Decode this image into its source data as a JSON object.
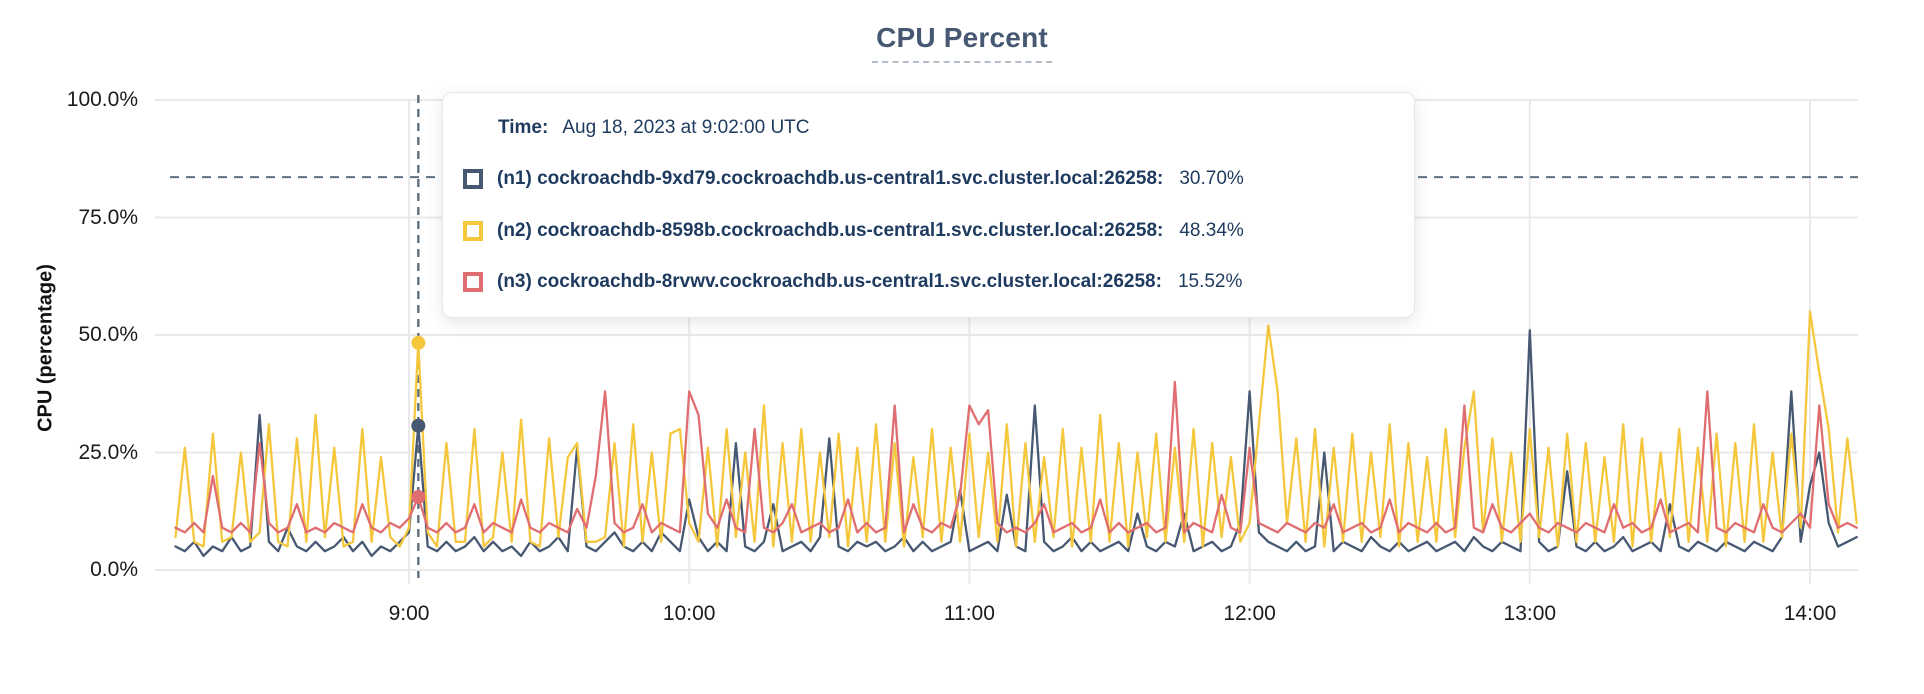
{
  "page": {
    "background": "#ffffff"
  },
  "colors": {
    "title": "#475872",
    "series_n1": "#475872",
    "series_n2": "#f4c73c",
    "series_n3": "#e06e71",
    "gridline": "#e9e9e9",
    "dashed_guide": "#5e7082",
    "tick_text": "#1b1b1b",
    "tooltip_text": "#1e3a5f"
  },
  "chart_data": {
    "type": "line",
    "title": "CPU Percent",
    "ylabel": "CPU (percentage)",
    "ylim": [
      0,
      100
    ],
    "grid": true,
    "x_axis_is_time": true,
    "x_ticks": [
      {
        "minute": 540,
        "label": "9:00"
      },
      {
        "minute": 600,
        "label": "10:00"
      },
      {
        "minute": 660,
        "label": "11:00"
      },
      {
        "minute": 720,
        "label": "12:00"
      },
      {
        "minute": 780,
        "label": "13:00"
      },
      {
        "minute": 840,
        "label": "14:00"
      }
    ],
    "y_ticks": [
      {
        "value": 100,
        "label": "100.0%"
      },
      {
        "value": 75,
        "label": "75.0%"
      },
      {
        "value": 50,
        "label": "50.0%"
      },
      {
        "value": 25,
        "label": "25.0%"
      },
      {
        "value": 0,
        "label": "0.0%"
      }
    ],
    "threshold_percent": 83.6,
    "hover": {
      "minute": 542,
      "time_label": "Aug 18, 2023 at 9:02:00 UTC"
    },
    "series": [
      {
        "id": "n1",
        "name": "(n1) cockroachdb-9xd79.cockroachdb.us-central1.svc.cluster.local:26258",
        "color": "#475872",
        "value_at_hover_percent": 30.7,
        "t_start_minute": 490,
        "t_step_minutes": 2,
        "values": [
          5,
          4,
          6,
          3,
          5,
          4,
          7,
          4,
          5,
          33,
          6,
          4,
          9,
          5,
          4,
          6,
          4,
          5,
          7,
          4,
          6,
          3,
          5,
          4,
          6,
          8,
          30.7,
          5,
          4,
          6,
          4,
          5,
          7,
          4,
          6,
          4,
          5,
          3,
          6,
          4,
          5,
          7,
          4,
          26,
          5,
          4,
          6,
          8,
          5,
          4,
          6,
          4,
          8,
          6,
          4,
          15,
          7,
          4,
          6,
          4,
          27,
          5,
          4,
          6,
          14,
          4,
          5,
          6,
          4,
          7,
          28,
          5,
          4,
          6,
          5,
          6,
          4,
          5,
          7,
          4,
          6,
          4,
          5,
          6,
          17,
          4,
          5,
          6,
          4,
          16,
          5,
          4,
          35,
          6,
          4,
          5,
          7,
          4,
          6,
          4,
          5,
          6,
          4,
          12,
          5,
          4,
          6,
          5,
          12,
          4,
          5,
          6,
          4,
          5,
          10,
          38,
          8,
          6,
          5,
          4,
          6,
          4,
          5,
          25,
          4,
          6,
          5,
          4,
          7,
          5,
          4,
          6,
          4,
          5,
          6,
          4,
          5,
          6,
          4,
          7,
          5,
          4,
          6,
          5,
          4,
          51,
          6,
          4,
          5,
          21,
          5,
          4,
          6,
          4,
          5,
          7,
          4,
          5,
          6,
          4,
          14,
          5,
          4,
          6,
          5,
          4,
          6,
          5,
          4,
          6,
          5,
          4,
          7,
          38,
          6,
          18,
          25,
          10,
          5,
          6,
          7
        ]
      },
      {
        "id": "n2",
        "name": "(n2) cockroachdb-8598b.cockroachdb.us-central1.svc.cluster.local:26258",
        "color": "#f4c73c",
        "value_at_hover_percent": 48.34,
        "t_start_minute": 490,
        "t_step_minutes": 2,
        "values": [
          7,
          26,
          6,
          5,
          29,
          6,
          7,
          25,
          6,
          8,
          31,
          6,
          5,
          28,
          6,
          33,
          7,
          26,
          5,
          6,
          30,
          6,
          24,
          7,
          5,
          9,
          48.34,
          8,
          5,
          27,
          6,
          6,
          30,
          5,
          7,
          25,
          6,
          32,
          6,
          5,
          28,
          7,
          24,
          27,
          6,
          6,
          7,
          27,
          5,
          31,
          6,
          25,
          6,
          29,
          30,
          10,
          6,
          26,
          5,
          30,
          7,
          25,
          6,
          35,
          5,
          27,
          6,
          30,
          6,
          25,
          7,
          29,
          5,
          26,
          6,
          31,
          6,
          27,
          5,
          24,
          7,
          30,
          6,
          26,
          6,
          29,
          7,
          25,
          6,
          31,
          5,
          27,
          6,
          24,
          7,
          30,
          5,
          26,
          6,
          33,
          6,
          27,
          5,
          25,
          7,
          29,
          6,
          26,
          6,
          30,
          5,
          27,
          7,
          24,
          6,
          10,
          31,
          52,
          38,
          10,
          28,
          6,
          30,
          5,
          26,
          6,
          29,
          6,
          25,
          7,
          31,
          5,
          27,
          6,
          24,
          6,
          30,
          7,
          26,
          38,
          8,
          28,
          6,
          25,
          6,
          30,
          7,
          26,
          5,
          29,
          6,
          27,
          6,
          24,
          6,
          31,
          5,
          28,
          6,
          25,
          7,
          30,
          6,
          26,
          6,
          29,
          5,
          27,
          6,
          31,
          6,
          25,
          7,
          29,
          9,
          55,
          42,
          30,
          8,
          28,
          10
        ]
      },
      {
        "id": "n3",
        "name": "(n3) cockroachdb-8rvwv.cockroachdb.us-central1.svc.cluster.local:26258",
        "color": "#e06e71",
        "value_at_hover_percent": 15.52,
        "t_start_minute": 490,
        "t_step_minutes": 2,
        "values": [
          9,
          8,
          10,
          8,
          20,
          9,
          8,
          10,
          8,
          27,
          10,
          8,
          9,
          14,
          8,
          9,
          8,
          10,
          9,
          8,
          14,
          9,
          8,
          10,
          9,
          11,
          15.52,
          9,
          8,
          10,
          8,
          9,
          14,
          8,
          10,
          9,
          8,
          15,
          9,
          8,
          10,
          9,
          8,
          13,
          9,
          20,
          38,
          10,
          8,
          9,
          14,
          8,
          10,
          9,
          8,
          38,
          33,
          12,
          9,
          15,
          9,
          8,
          30,
          9,
          8,
          10,
          14,
          8,
          9,
          10,
          8,
          9,
          15,
          8,
          10,
          8,
          9,
          35,
          8,
          14,
          9,
          8,
          10,
          9,
          16,
          35,
          31,
          34,
          10,
          8,
          9,
          8,
          10,
          14,
          8,
          9,
          10,
          8,
          9,
          15,
          8,
          10,
          8,
          9,
          10,
          8,
          9,
          40,
          8,
          10,
          9,
          8,
          16,
          9,
          8,
          26,
          10,
          9,
          8,
          10,
          9,
          8,
          10,
          9,
          14,
          8,
          9,
          10,
          8,
          9,
          15,
          8,
          10,
          9,
          8,
          10,
          8,
          9,
          35,
          9,
          8,
          14,
          9,
          8,
          10,
          12,
          9,
          8,
          10,
          9,
          8,
          10,
          9,
          8,
          14,
          9,
          10,
          8,
          9,
          15,
          8,
          9,
          10,
          8,
          38,
          9,
          8,
          10,
          9,
          8,
          14,
          9,
          8,
          10,
          12,
          9,
          35,
          14,
          9,
          10,
          9
        ]
      }
    ]
  },
  "tooltip": {
    "time_label": "Time:",
    "time_value": "Aug 18, 2023 at 9:02:00 UTC",
    "rows": [
      {
        "label": "(n1) cockroachdb-9xd79.cockroachdb.us-central1.svc.cluster.local:26258:",
        "value": "30.70%",
        "color": "#475872"
      },
      {
        "label": "(n2) cockroachdb-8598b.cockroachdb.us-central1.svc.cluster.local:26258:",
        "value": "48.34%",
        "color": "#f4c73c"
      },
      {
        "label": "(n3) cockroachdb-8rvwv.cockroachdb.us-central1.svc.cluster.local:26258:",
        "value": "15.52%",
        "color": "#e06e71"
      }
    ]
  }
}
